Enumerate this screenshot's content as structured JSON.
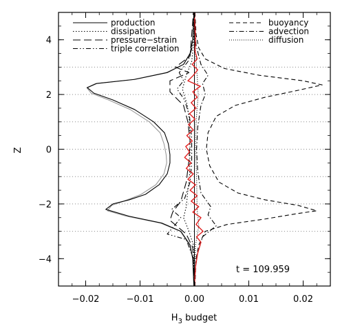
{
  "chart_data": {
    "type": "line",
    "title": "",
    "xlabel": "H",
    "xlabel_sub": "3",
    "xlabel_suffix": " budget",
    "ylabel": "Z",
    "xlim": [
      -0.025,
      0.025
    ],
    "ylim": [
      -5,
      5
    ],
    "xticks": [
      -0.02,
      -0.01,
      0.0,
      0.01,
      0.02
    ],
    "xtick_labels": [
      "−0.02",
      "−0.01",
      "0.00",
      "0.01",
      "0.02"
    ],
    "yticks": [
      -4,
      -2,
      0,
      2,
      4
    ],
    "ytick_labels": [
      "−4",
      "−2",
      "0",
      "2",
      "4"
    ],
    "dotted_gridlines_y": [
      -3,
      -2,
      -1,
      0,
      1,
      2,
      3
    ],
    "annotation": "t = 109.959",
    "legend_left": [
      "production",
      "dissipation",
      "pressure−strain",
      "triple correlation"
    ],
    "legend_right": [
      "buoyancy",
      "advection",
      "diffusion"
    ],
    "series": [
      {
        "name": "production",
        "style": "solid",
        "color": "#000000",
        "points": [
          [
            -0.0001,
            -5
          ],
          [
            -0.0003,
            -4
          ],
          [
            -0.0008,
            -3.5
          ],
          [
            -0.0025,
            -3
          ],
          [
            -0.006,
            -2.7
          ],
          [
            -0.012,
            -2.45
          ],
          [
            -0.0163,
            -2.2
          ],
          [
            -0.015,
            -2.0
          ],
          [
            -0.012,
            -1.85
          ],
          [
            -0.009,
            -1.65
          ],
          [
            -0.0065,
            -1.3
          ],
          [
            -0.005,
            -0.9
          ],
          [
            -0.0045,
            -0.5
          ],
          [
            -0.0045,
            -0.2
          ],
          [
            -0.0048,
            0.2
          ],
          [
            -0.0055,
            0.6
          ],
          [
            -0.0075,
            1.0
          ],
          [
            -0.011,
            1.45
          ],
          [
            -0.015,
            1.8
          ],
          [
            -0.0185,
            2.05
          ],
          [
            -0.0197,
            2.25
          ],
          [
            -0.018,
            2.4
          ],
          [
            -0.011,
            2.55
          ],
          [
            -0.005,
            2.8
          ],
          [
            -0.002,
            3.1
          ],
          [
            -0.0008,
            3.5
          ],
          [
            -0.0003,
            4
          ],
          [
            -0.0001,
            5
          ]
        ]
      },
      {
        "name": "production (gray)",
        "style": "solid",
        "color": "#9a9a9a",
        "points": [
          [
            -0.0001,
            -5
          ],
          [
            -0.0003,
            -4
          ],
          [
            -0.0009,
            -3.5
          ],
          [
            -0.0026,
            -3
          ],
          [
            -0.0062,
            -2.7
          ],
          [
            -0.0125,
            -2.45
          ],
          [
            -0.016,
            -2.25
          ],
          [
            -0.0152,
            -2.05
          ],
          [
            -0.013,
            -1.9
          ],
          [
            -0.0098,
            -1.65
          ],
          [
            -0.0071,
            -1.3
          ],
          [
            -0.0056,
            -0.9
          ],
          [
            -0.0051,
            -0.5
          ],
          [
            -0.0052,
            -0.2
          ],
          [
            -0.0056,
            0.2
          ],
          [
            -0.0063,
            0.6
          ],
          [
            -0.0083,
            1.0
          ],
          [
            -0.0118,
            1.45
          ],
          [
            -0.0158,
            1.8
          ],
          [
            -0.019,
            2.05
          ],
          [
            -0.0198,
            2.25
          ],
          [
            -0.0182,
            2.4
          ],
          [
            -0.0112,
            2.55
          ],
          [
            -0.0052,
            2.8
          ],
          [
            -0.002,
            3.1
          ],
          [
            -0.0008,
            3.5
          ],
          [
            -0.0003,
            4
          ],
          [
            -0.0001,
            5
          ]
        ]
      },
      {
        "name": "buoyancy",
        "style": "dashed",
        "color": "#000000",
        "points": [
          [
            0.0001,
            -5
          ],
          [
            0.0003,
            -4
          ],
          [
            0.0008,
            -3.5
          ],
          [
            0.002,
            -3.0
          ],
          [
            0.006,
            -2.75
          ],
          [
            0.013,
            -2.55
          ],
          [
            0.019,
            -2.35
          ],
          [
            0.0225,
            -2.25
          ],
          [
            0.019,
            -2.05
          ],
          [
            0.013,
            -1.85
          ],
          [
            0.008,
            -1.6
          ],
          [
            0.0045,
            -1.2
          ],
          [
            0.0028,
            -0.6
          ],
          [
            0.0022,
            0
          ],
          [
            0.0025,
            0.6
          ],
          [
            0.004,
            1.2
          ],
          [
            0.0075,
            1.6
          ],
          [
            0.013,
            1.9
          ],
          [
            0.019,
            2.15
          ],
          [
            0.0235,
            2.35
          ],
          [
            0.02,
            2.5
          ],
          [
            0.012,
            2.7
          ],
          [
            0.0055,
            2.95
          ],
          [
            0.002,
            3.3
          ],
          [
            0.0008,
            3.7
          ],
          [
            0.0003,
            4.2
          ],
          [
            0.0001,
            5
          ]
        ]
      },
      {
        "name": "dissipation",
        "style": "dotted",
        "color": "#000000",
        "points": [
          [
            0,
            -5
          ],
          [
            -0.0002,
            -3.5
          ],
          [
            -0.001,
            -3
          ],
          [
            -0.002,
            -2.5
          ],
          [
            -0.0015,
            -2.1
          ],
          [
            -0.0012,
            -1.5
          ],
          [
            -0.0009,
            -1
          ],
          [
            -0.0008,
            0
          ],
          [
            -0.0009,
            1
          ],
          [
            -0.0013,
            1.6
          ],
          [
            -0.0022,
            2.2
          ],
          [
            -0.0015,
            2.7
          ],
          [
            -0.0005,
            3.2
          ],
          [
            -0.0001,
            4
          ],
          [
            0,
            5
          ]
        ]
      },
      {
        "name": "pressure−strain",
        "style": "longdash",
        "color": "#000000",
        "points": [
          [
            0,
            -5
          ],
          [
            -0.0003,
            -3.6
          ],
          [
            -0.0015,
            -3.1
          ],
          [
            -0.0045,
            -2.6
          ],
          [
            -0.004,
            -2.3
          ],
          [
            -0.0025,
            -1.9
          ],
          [
            -0.0015,
            -1.2
          ],
          [
            -0.001,
            -0.4
          ],
          [
            -0.0008,
            0.3
          ],
          [
            -0.0012,
            1.0
          ],
          [
            -0.002,
            1.6
          ],
          [
            -0.0045,
            2.1
          ],
          [
            -0.0045,
            2.5
          ],
          [
            -0.001,
            2.8
          ],
          [
            -0.0035,
            3.0
          ],
          [
            -0.0008,
            3.4
          ],
          [
            -0.0005,
            4.2
          ],
          [
            -0.0003,
            4.7
          ],
          [
            -0.0002,
            5
          ]
        ]
      },
      {
        "name": "triple correlation",
        "style": "dashdotdot",
        "color": "#000000",
        "points": [
          [
            0,
            -5
          ],
          [
            -0.0002,
            -4
          ],
          [
            -0.0015,
            -3.3
          ],
          [
            -0.005,
            -3.1
          ],
          [
            -0.0035,
            -2.75
          ],
          [
            -0.0025,
            -2.5
          ],
          [
            -0.0042,
            -2.2
          ],
          [
            -0.0018,
            -1.8
          ],
          [
            -0.0008,
            -1.2
          ],
          [
            -0.0005,
            -0.5
          ],
          [
            -0.0005,
            0.4
          ],
          [
            -0.0009,
            1.2
          ],
          [
            -0.0018,
            1.8
          ],
          [
            -0.0032,
            2.2
          ],
          [
            -0.002,
            2.5
          ],
          [
            -0.0028,
            2.8
          ],
          [
            -0.0012,
            3.2
          ],
          [
            -0.0003,
            3.8
          ],
          [
            0,
            5
          ]
        ]
      },
      {
        "name": "advection",
        "style": "dashdot",
        "color": "#000000",
        "points": [
          [
            0,
            -5
          ],
          [
            0.0003,
            -4
          ],
          [
            0.0015,
            -3.2
          ],
          [
            0.004,
            -2.8
          ],
          [
            0.0025,
            -2.4
          ],
          [
            0.003,
            -2.1
          ],
          [
            0.0012,
            -1.6
          ],
          [
            0.0006,
            -0.8
          ],
          [
            0.0004,
            0
          ],
          [
            0.0006,
            0.8
          ],
          [
            0.0012,
            1.6
          ],
          [
            0.002,
            2.0
          ],
          [
            0.0015,
            2.4
          ],
          [
            0.0025,
            2.7
          ],
          [
            0.0012,
            3.1
          ],
          [
            0.0003,
            3.8
          ],
          [
            0,
            5
          ]
        ]
      },
      {
        "name": "diffusion",
        "style": "fine-dotted",
        "color": "#000000",
        "points": [
          [
            0,
            -5
          ],
          [
            0.0002,
            -3.5
          ],
          [
            0.0008,
            -2.8
          ],
          [
            0.0005,
            -2.2
          ],
          [
            0.0004,
            -1
          ],
          [
            0.0002,
            0
          ],
          [
            0.0003,
            1
          ],
          [
            0.0007,
            2
          ],
          [
            0.0005,
            2.7
          ],
          [
            0.0002,
            3.5
          ],
          [
            0,
            5
          ]
        ]
      },
      {
        "name": "sum (red)",
        "style": "solid",
        "color": "#e02020",
        "points": [
          [
            0,
            -5
          ],
          [
            0.0002,
            -4.3
          ],
          [
            0.0006,
            -3.8
          ],
          [
            0.0012,
            -3.4
          ],
          [
            0.0004,
            -3.2
          ],
          [
            0.0016,
            -3.0
          ],
          [
            0.0003,
            -2.75
          ],
          [
            0.0012,
            -2.5
          ],
          [
            -0.0003,
            -2.3
          ],
          [
            0.0008,
            -2.1
          ],
          [
            -0.0006,
            -1.9
          ],
          [
            0.0005,
            -1.7
          ],
          [
            -0.0008,
            -1.5
          ],
          [
            0.0002,
            -1.3
          ],
          [
            -0.0012,
            -1.1
          ],
          [
            -0.0002,
            -0.9
          ],
          [
            -0.0015,
            -0.7
          ],
          [
            -0.0006,
            -0.5
          ],
          [
            -0.0018,
            -0.3
          ],
          [
            -0.0009,
            -0.1
          ],
          [
            -0.0016,
            0.1
          ],
          [
            -0.0004,
            0.3
          ],
          [
            -0.0014,
            0.5
          ],
          [
            -0.0002,
            0.7
          ],
          [
            -0.0011,
            0.9
          ],
          [
            0.0001,
            1.1
          ],
          [
            -0.0009,
            1.3
          ],
          [
            0.0003,
            1.5
          ],
          [
            -0.0006,
            1.7
          ],
          [
            0.0005,
            1.9
          ],
          [
            -0.0003,
            2.1
          ],
          [
            0.0011,
            2.3
          ],
          [
            -0.0012,
            2.5
          ],
          [
            -0.0002,
            2.7
          ],
          [
            0.0006,
            2.9
          ],
          [
            -0.0004,
            3.1
          ],
          [
            0.0005,
            3.3
          ],
          [
            0.0001,
            3.6
          ],
          [
            0.0002,
            4.0
          ],
          [
            0.0001,
            4.5
          ],
          [
            0,
            5
          ]
        ]
      }
    ]
  }
}
